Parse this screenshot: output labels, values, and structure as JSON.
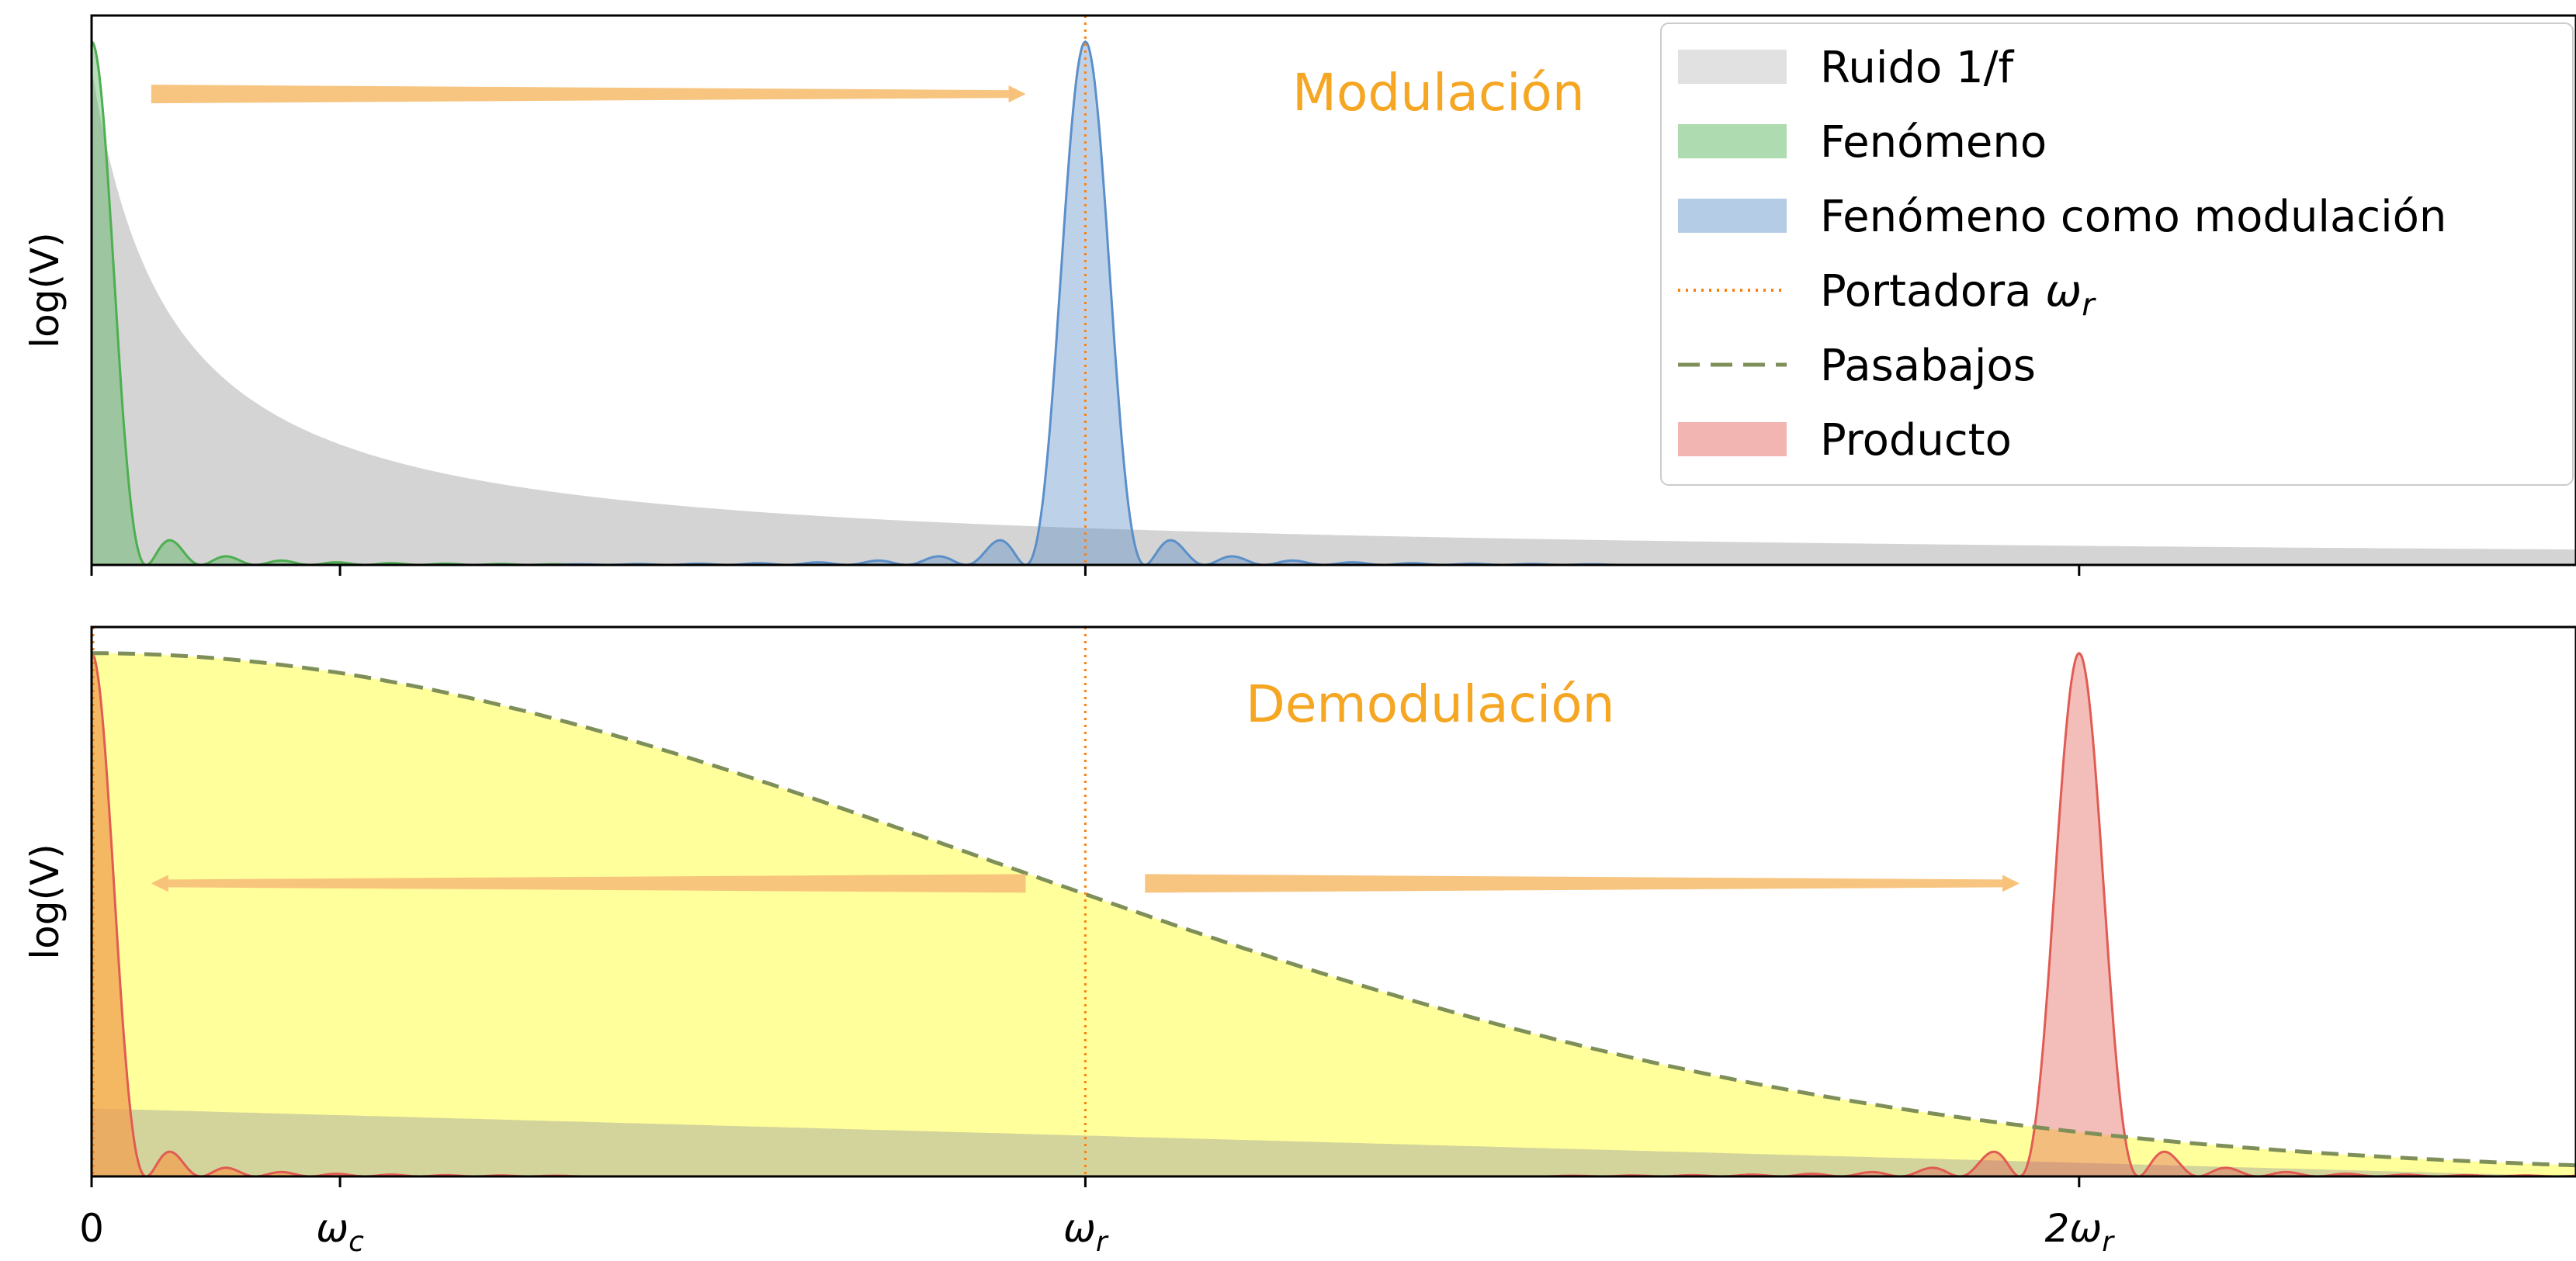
{
  "chart_data": {
    "type": "area",
    "x_ticks": [
      {
        "x": 0.0,
        "label": "0"
      },
      {
        "x": 0.25,
        "label": "ω",
        "sub": "c"
      },
      {
        "x": 1.0,
        "label": "ω",
        "sub": "r"
      },
      {
        "x": 2.0,
        "label": "2ω",
        "sub": "r"
      }
    ],
    "xlim": [
      0,
      2.5
    ],
    "ylim": [
      0,
      1.05
    ],
    "carrier_x": 1.0,
    "colors": {
      "noise": "#BDBDBD",
      "phenomenon": "#4CAF50",
      "modulated": "#5B8FC9",
      "carrier": "#FF7F0E",
      "lowpass_line": "#7F8F5A",
      "lowpass_fill": "#FFFF66",
      "product": "#E25B52",
      "product_low": "#F0A050",
      "arrow": "#F8C27A",
      "panel_label": "#F5A623"
    },
    "panels": [
      {
        "id": "top",
        "ylabel": "log(V)",
        "label": "Modulación",
        "noise_1f": {
          "amplitude": 0.95,
          "tau": 0.08
        },
        "peaks": [
          {
            "name": "Fenómeno",
            "center": 0.0,
            "width": 0.055,
            "height": 1.0,
            "color": "phenomenon",
            "one_sided": true
          },
          {
            "name": "Fenómeno como modulación",
            "center": 1.0,
            "width": 0.06,
            "height": 1.0,
            "color": "modulated",
            "one_sided": false
          }
        ],
        "arrows": [
          {
            "from": 0.06,
            "to": 0.94,
            "y": 0.9,
            "direction": "right"
          }
        ]
      },
      {
        "id": "bottom",
        "ylabel": "log(V)",
        "label": "Demodulación",
        "lowpass": {
          "height": 1.0,
          "sigma": 0.9
        },
        "noise_low": {
          "start": 0.12,
          "end": 2.5
        },
        "peaks": [
          {
            "name": "Producto",
            "center": 0.0,
            "width": 0.055,
            "height": 1.0,
            "color": "product",
            "one_sided": true
          },
          {
            "name": "Producto",
            "center": 2.0,
            "width": 0.06,
            "height": 1.0,
            "color": "product",
            "one_sided": false
          }
        ],
        "arrows": [
          {
            "from": 0.94,
            "to": 0.06,
            "y": 0.56,
            "direction": "left"
          },
          {
            "from": 1.06,
            "to": 1.94,
            "y": 0.56,
            "direction": "right"
          }
        ]
      }
    ],
    "legend": {
      "placement": "top-right",
      "entries": [
        {
          "label": "Ruido 1/f",
          "kind": "patch",
          "color": "noise"
        },
        {
          "label": "Fenómeno",
          "kind": "patch",
          "color": "phenomenon"
        },
        {
          "label": "Fenómeno como modulación",
          "kind": "patch",
          "color": "modulated"
        },
        {
          "label": "Portadora ",
          "math": "ω",
          "sub": "r",
          "kind": "dotted",
          "color": "carrier"
        },
        {
          "label": "Pasabajos",
          "kind": "dashed",
          "color": "lowpass_line"
        },
        {
          "label": "Producto",
          "kind": "patch",
          "color": "product"
        }
      ]
    }
  }
}
